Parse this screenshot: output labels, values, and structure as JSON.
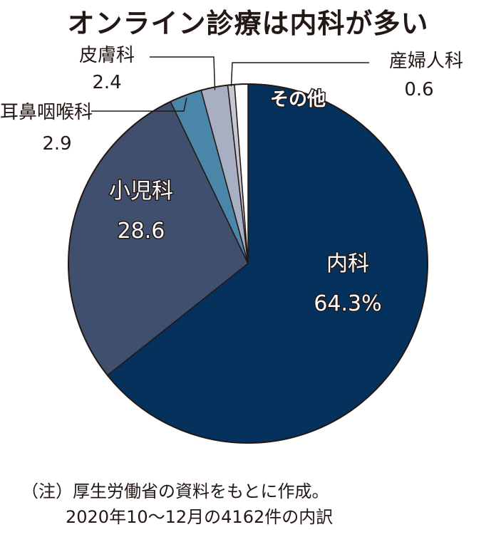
{
  "chart_data": {
    "type": "pie",
    "title": "オンライン診療は内科が多い",
    "slices": [
      {
        "label": "内科",
        "value": 64.3,
        "value_text": "64.3%",
        "color": "#05315d",
        "label_pos": "inside"
      },
      {
        "label": "小児科",
        "value": 28.6,
        "value_text": "28.6",
        "color": "#3f4f6d",
        "label_pos": "inside"
      },
      {
        "label": "耳鼻咽喉科",
        "value": 2.9,
        "value_text": "2.9",
        "color": "#4a86a8",
        "label_pos": "outside"
      },
      {
        "label": "皮膚科",
        "value": 2.4,
        "value_text": "2.4",
        "color": "#a9afc2",
        "label_pos": "outside"
      },
      {
        "label": "産婦人科",
        "value": 0.6,
        "value_text": "0.6",
        "color": "#c4c8d3",
        "label_pos": "outside"
      },
      {
        "label": "その他",
        "value": 1.2,
        "value_text": "",
        "color": "#ffffff",
        "label_pos": "outside"
      }
    ],
    "unit": "%"
  },
  "notes": {
    "line1": "（注）厚生労働省の資料をもとに作成。",
    "line2": "2020年10～12月の4162件の内訳"
  }
}
